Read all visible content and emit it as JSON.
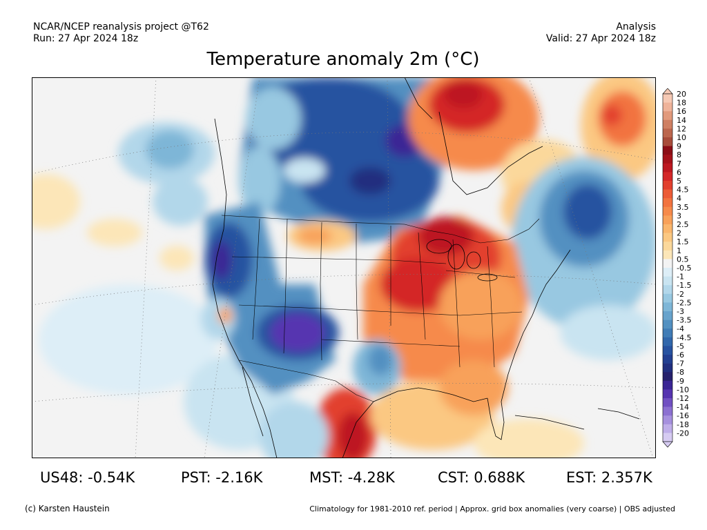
{
  "header": {
    "left_line1": "NCAR/NCEP reanalysis project @T62",
    "left_line2": "Run: 27 Apr 2024 18z",
    "right_line1": "Analysis",
    "right_line2": "Valid: 27 Apr 2024 18z",
    "title": "Temperature anomaly 2m (°C)"
  },
  "colorbar": {
    "levels": [
      {
        "label": "20",
        "color": "#f6c9b4"
      },
      {
        "label": "18",
        "color": "#efb39a"
      },
      {
        "label": "16",
        "color": "#e29a7c"
      },
      {
        "label": "14",
        "color": "#cf7f62"
      },
      {
        "label": "12",
        "color": "#bc664d"
      },
      {
        "label": "10",
        "color": "#a84c3a"
      },
      {
        "label": "9",
        "color": "#8c0e16"
      },
      {
        "label": "8",
        "color": "#a5121a"
      },
      {
        "label": "7",
        "color": "#bd1820"
      },
      {
        "label": "6",
        "color": "#d42728"
      },
      {
        "label": "5",
        "color": "#e2402e"
      },
      {
        "label": "4.5",
        "color": "#ec5b36"
      },
      {
        "label": "4",
        "color": "#f2733f"
      },
      {
        "label": "3.5",
        "color": "#f68a4b"
      },
      {
        "label": "3",
        "color": "#f8a15a"
      },
      {
        "label": "2.5",
        "color": "#fab66d"
      },
      {
        "label": "2",
        "color": "#fbc882"
      },
      {
        "label": "1.5",
        "color": "#fbd89b"
      },
      {
        "label": "1",
        "color": "#fce6b8"
      },
      {
        "label": "0.5",
        "color": "#f3f3f3"
      },
      {
        "label": "-0.5",
        "color": "#ddeef7"
      },
      {
        "label": "-1",
        "color": "#c9e4f1"
      },
      {
        "label": "-1.5",
        "color": "#b2d7ea"
      },
      {
        "label": "-2",
        "color": "#98c8e1"
      },
      {
        "label": "-2.5",
        "color": "#7eb6d7"
      },
      {
        "label": "-3",
        "color": "#67a3cc"
      },
      {
        "label": "-3.5",
        "color": "#5290c1"
      },
      {
        "label": "-4",
        "color": "#407cb6"
      },
      {
        "label": "-4.5",
        "color": "#3167ab"
      },
      {
        "label": "-5",
        "color": "#2752a0"
      },
      {
        "label": "-6",
        "color": "#223f91"
      },
      {
        "label": "-7",
        "color": "#212f7f"
      },
      {
        "label": "-8",
        "color": "#26216c"
      },
      {
        "label": "-9",
        "color": "#3a2595"
      },
      {
        "label": "-10",
        "color": "#5634b0"
      },
      {
        "label": "-12",
        "color": "#7150c2"
      },
      {
        "label": "-14",
        "color": "#8c70d1"
      },
      {
        "label": "-16",
        "color": "#a690de"
      },
      {
        "label": "-18",
        "color": "#bfaee9"
      },
      {
        "label": "-20",
        "color": "#d6cbf2"
      }
    ]
  },
  "stats": [
    {
      "text": "US48: -0.54K"
    },
    {
      "text": "PST: -2.16K"
    },
    {
      "text": "MST: -4.28K"
    },
    {
      "text": "CST: 0.688K"
    },
    {
      "text": "EST: 2.357K"
    }
  ],
  "footer": {
    "credit": "(c) Karsten Haustein",
    "note": "Climatology for 1981-2010 ref. period | Approx. grid box anomalies (very coarse) | OBS adjusted"
  }
}
